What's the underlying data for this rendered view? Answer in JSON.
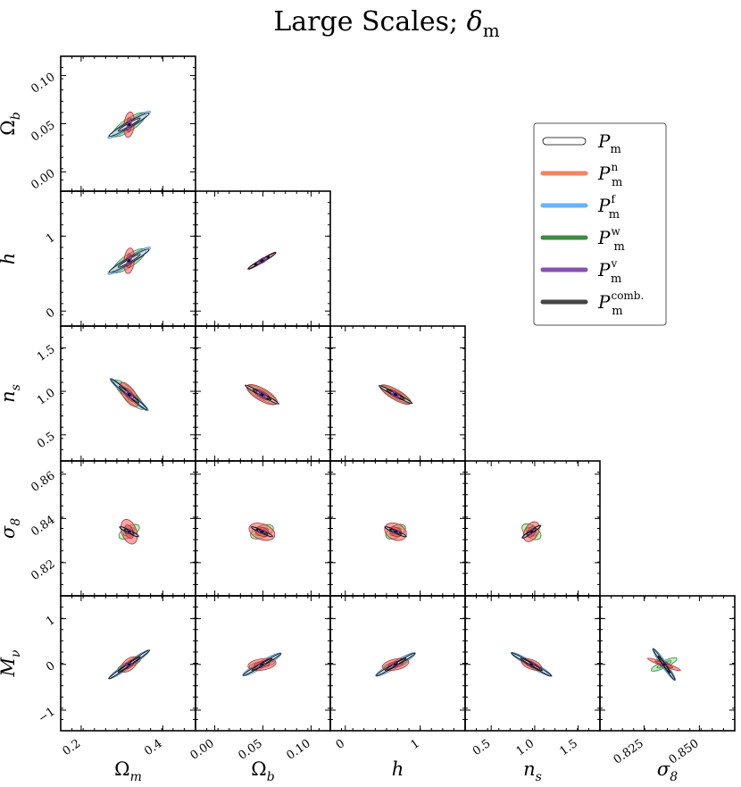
{
  "chart_data": {
    "type": "scatter",
    "subtype": "triangle-contour-plot",
    "title": "Large Scales; δm",
    "title_main": "Large Scales; ",
    "title_symbol": "δ",
    "title_sub": "m",
    "parameters": [
      {
        "key": "Om",
        "sym": "Ω",
        "sub": "m",
        "ticks": [
          0.2,
          0.4
        ],
        "tick_labels": [
          "0.2",
          "0.4"
        ],
        "range": [
          0.15,
          0.48
        ],
        "fid": 0.3175
      },
      {
        "key": "Ob",
        "sym": "Ω",
        "sub": "b",
        "ticks": [
          0.0,
          0.05,
          0.1
        ],
        "tick_labels": [
          "0.00",
          "0.05",
          "0.10"
        ],
        "range": [
          -0.02,
          0.12
        ],
        "fid": 0.049
      },
      {
        "key": "h",
        "sym": "h",
        "sub": "",
        "ticks": [
          0,
          1
        ],
        "tick_labels": [
          "0",
          "1"
        ],
        "range": [
          -0.2,
          1.6
        ],
        "fid": 0.6711
      },
      {
        "key": "ns",
        "sym": "n",
        "sub": "s",
        "ticks": [
          0.5,
          1.0,
          1.5
        ],
        "tick_labels": [
          "0.5",
          "1.0",
          "1.5"
        ],
        "range": [
          0.2,
          1.75
        ],
        "fid": 0.9624
      },
      {
        "key": "s8",
        "sym": "σ",
        "sub": "8",
        "ticks": [
          0.82,
          0.84,
          0.86
        ],
        "tick_labels": [
          "0.82",
          "0.84",
          "0.86"
        ],
        "xticks": [
          0.825,
          0.85
        ],
        "xtick_labels": [
          "0.825",
          "0.850"
        ],
        "range": [
          0.805,
          0.866
        ],
        "fid": 0.834
      },
      {
        "key": "Mnu",
        "sym": "M",
        "sub": "ν",
        "ticks": [
          -1,
          0,
          1
        ],
        "tick_labels": [
          "−1",
          "0",
          "1"
        ],
        "range": [
          -1.45,
          1.5
        ],
        "fid": 0.0
      }
    ],
    "series": [
      {
        "name": "Pm",
        "legend_main": "P",
        "legend_sub": "m",
        "legend_sup": "",
        "color": "#ffffff",
        "edge": "#000000",
        "fill": "#dde4ee",
        "legend_style": "outline"
      },
      {
        "name": "Pm^n",
        "legend_main": "P",
        "legend_sub": "m",
        "legend_sup": "n",
        "color": "#f4845f",
        "edge": "#b03030",
        "fill": "#f25c5c",
        "legend_style": "solid"
      },
      {
        "name": "Pm^f",
        "legend_main": "P",
        "legend_sub": "m",
        "legend_sup": "f",
        "color": "#66b3ff",
        "edge": "#3a7bbf",
        "fill": "#8cc4f0",
        "legend_style": "solid"
      },
      {
        "name": "Pm^w",
        "legend_main": "P",
        "legend_sub": "m",
        "legend_sup": "w",
        "color": "#3d8c40",
        "edge": "#2e7d32",
        "fill": "#8fe58f",
        "legend_style": "solid"
      },
      {
        "name": "Pm^v",
        "legend_main": "P",
        "legend_sub": "m",
        "legend_sup": "v",
        "color": "#8a4fb0",
        "edge": "#5b2c83",
        "fill": "#b57ad6",
        "legend_style": "solid"
      },
      {
        "name": "Pm^comb.",
        "legend_main": "P",
        "legend_sub": "m",
        "legend_sup": "comb.",
        "color": "#444444",
        "edge": "#111111",
        "fill": "#333333",
        "legend_style": "solid"
      }
    ],
    "ellipses": {
      "Ob|Om": {
        "Pm": [
          0.17,
          0.02,
          30
        ],
        "Pm^n": [
          0.095,
          0.038,
          84
        ],
        "Pm^f": [
          0.185,
          0.028,
          32
        ],
        "Pm^w": [
          0.145,
          0.045,
          34
        ],
        "Pm^v": [
          0.04,
          0.014,
          75
        ],
        "Pm^comb.": [
          0.01,
          0.006,
          70
        ]
      },
      "h|Om": {
        "Pm": [
          0.17,
          0.02,
          30
        ],
        "Pm^n": [
          0.095,
          0.038,
          84
        ],
        "Pm^f": [
          0.185,
          0.028,
          32
        ],
        "Pm^w": [
          0.145,
          0.045,
          34
        ],
        "Pm^v": [
          0.04,
          0.014,
          75
        ],
        "Pm^comb.": [
          0.01,
          0.006,
          70
        ]
      },
      "h|Ob": {
        "Pm": [
          0.118,
          0.01,
          30
        ],
        "Pm^n": [
          0.122,
          0.013,
          31
        ],
        "Pm^f": [
          0.122,
          0.013,
          31
        ],
        "Pm^w": [
          0.118,
          0.012,
          30
        ],
        "Pm^v": [
          0.045,
          0.016,
          30
        ],
        "Pm^comb.": [
          0.012,
          0.007,
          30
        ]
      },
      "ns|Om": {
        "Pm": [
          0.175,
          0.014,
          -40
        ],
        "Pm^n": [
          0.105,
          0.045,
          -55
        ],
        "Pm^f": [
          0.185,
          0.024,
          -40
        ],
        "Pm^w": [
          0.15,
          0.04,
          -45
        ],
        "Pm^v": [
          0.04,
          0.017,
          -40
        ],
        "Pm^comb.": [
          0.012,
          0.008,
          -40
        ]
      },
      "ns|Ob": {
        "Pm": [
          0.143,
          0.012,
          -29
        ],
        "Pm^n": [
          0.128,
          0.045,
          -30
        ],
        "Pm^f": [
          0.143,
          0.012,
          -29
        ],
        "Pm^w": [
          0.128,
          0.035,
          -30
        ],
        "Pm^v": [
          0.045,
          0.016,
          -30
        ],
        "Pm^comb.": [
          0.012,
          0.007,
          -30
        ]
      },
      "ns|h": {
        "Pm": [
          0.14,
          0.012,
          -28
        ],
        "Pm^n": [
          0.128,
          0.038,
          -30
        ],
        "Pm^f": [
          0.14,
          0.012,
          -28
        ],
        "Pm^w": [
          0.13,
          0.03,
          -28
        ],
        "Pm^v": [
          0.04,
          0.014,
          -28
        ],
        "Pm^comb.": [
          0.012,
          0.007,
          -28
        ]
      },
      "s8|Om": {
        "Pm": [
          0.075,
          0.012,
          -27
        ],
        "Pm^n": [
          0.095,
          0.055,
          -70
        ],
        "Pm^f": [
          0.082,
          0.015,
          -27
        ],
        "Pm^w": [
          0.085,
          0.04,
          30
        ],
        "Pm^v": [
          0.025,
          0.014,
          20
        ],
        "Pm^comb.": [
          0.01,
          0.006,
          0
        ]
      },
      "s8|Ob": {
        "Pm": [
          0.085,
          0.011,
          -24
        ],
        "Pm^n": [
          0.1,
          0.058,
          -20
        ],
        "Pm^f": [
          0.09,
          0.015,
          -24
        ],
        "Pm^w": [
          0.09,
          0.045,
          22
        ],
        "Pm^v": [
          0.028,
          0.013,
          0
        ],
        "Pm^comb.": [
          0.011,
          0.006,
          0
        ]
      },
      "s8|h": {
        "Pm": [
          0.085,
          0.011,
          -24
        ],
        "Pm^n": [
          0.085,
          0.06,
          -25
        ],
        "Pm^f": [
          0.09,
          0.015,
          -24
        ],
        "Pm^w": [
          0.08,
          0.045,
          28
        ],
        "Pm^v": [
          0.028,
          0.013,
          10
        ],
        "Pm^comb.": [
          0.011,
          0.006,
          0
        ]
      },
      "s8|ns": {
        "Pm": [
          0.08,
          0.012,
          34
        ],
        "Pm^n": [
          0.08,
          0.05,
          60
        ],
        "Pm^f": [
          0.085,
          0.015,
          34
        ],
        "Pm^w": [
          0.08,
          0.045,
          -35
        ],
        "Pm^v": [
          0.025,
          0.012,
          60
        ],
        "Pm^comb.": [
          0.01,
          0.006,
          60
        ]
      },
      "Mnu|Om": {
        "Pm": [
          0.185,
          0.012,
          35
        ],
        "Pm^n": [
          0.075,
          0.04,
          40
        ],
        "Pm^f": [
          0.185,
          0.022,
          35
        ],
        "Pm^w": [
          0.09,
          0.02,
          22
        ],
        "Pm^v": [
          0.028,
          0.012,
          5
        ],
        "Pm^comb.": [
          0.01,
          0.005,
          0
        ]
      },
      "Mnu|Ob": {
        "Pm": [
          0.16,
          0.012,
          30
        ],
        "Pm^n": [
          0.105,
          0.042,
          8
        ],
        "Pm^f": [
          0.165,
          0.025,
          30
        ],
        "Pm^w": [
          0.095,
          0.022,
          10
        ],
        "Pm^v": [
          0.028,
          0.011,
          5
        ],
        "Pm^comb.": [
          0.011,
          0.005,
          0
        ]
      },
      "Mnu|h": {
        "Pm": [
          0.165,
          0.012,
          30
        ],
        "Pm^n": [
          0.1,
          0.04,
          12
        ],
        "Pm^f": [
          0.17,
          0.025,
          30
        ],
        "Pm^w": [
          0.09,
          0.022,
          15
        ],
        "Pm^v": [
          0.028,
          0.011,
          5
        ],
        "Pm^comb.": [
          0.011,
          0.005,
          0
        ]
      },
      "Mnu|ns": {
        "Pm": [
          0.17,
          0.012,
          -30
        ],
        "Pm^n": [
          0.08,
          0.035,
          -22
        ],
        "Pm^f": [
          0.175,
          0.022,
          -30
        ],
        "Pm^w": [
          0.06,
          0.02,
          -20
        ],
        "Pm^v": [
          0.025,
          0.01,
          -15
        ],
        "Pm^comb.": [
          0.01,
          0.005,
          0
        ]
      },
      "Mnu|s8": {
        "Pm": [
          0.14,
          0.01,
          -55
        ],
        "Pm^n": [
          0.13,
          0.015,
          -20
        ],
        "Pm^f": [
          0.145,
          0.02,
          -55
        ],
        "Pm^w": [
          0.105,
          0.025,
          25
        ],
        "Pm^v": [
          0.03,
          0.01,
          20
        ],
        "Pm^comb.": [
          0.012,
          0.005,
          0
        ]
      }
    },
    "inner_scale": 0.55,
    "grid": false,
    "legend_position": "upper-right"
  }
}
